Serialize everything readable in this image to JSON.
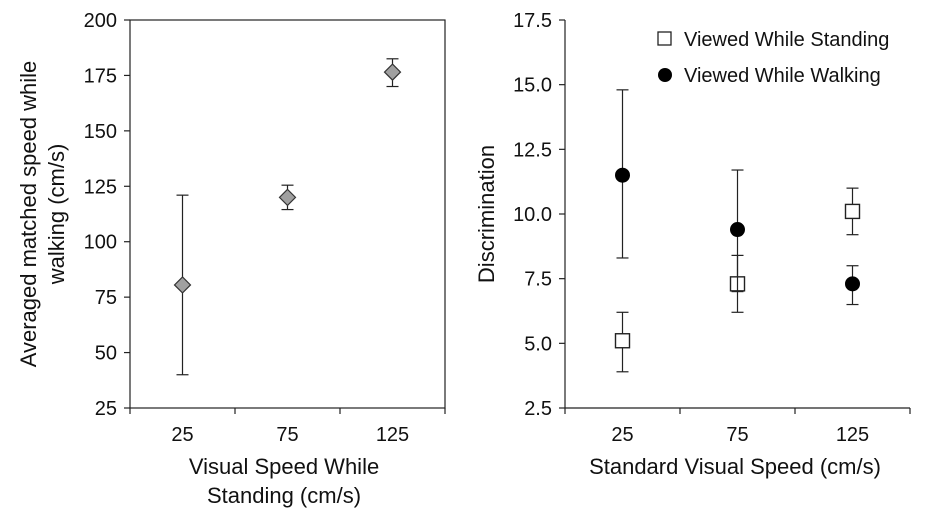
{
  "chart_data": [
    {
      "type": "scatter",
      "title": "",
      "xlabel_lines": [
        "Visual Speed While",
        "Standing (cm/s)"
      ],
      "ylabel_lines": [
        "Averaged matched speed while",
        "walking (cm/s)"
      ],
      "categories": [
        "25",
        "75",
        "125"
      ],
      "ylim": [
        25,
        200
      ],
      "yticks": [
        25,
        50,
        75,
        100,
        125,
        150,
        175,
        200
      ],
      "ytick_labels": [
        "25",
        "50",
        "75",
        "100",
        "125",
        "150",
        "175",
        "200"
      ],
      "grid": false,
      "border": true,
      "series": [
        {
          "marker": "diamond",
          "color": "#a0a0a0",
          "values": [
            80.5,
            120,
            176.5
          ],
          "err_low": [
            40,
            114.5,
            170
          ],
          "err_high": [
            121,
            125.5,
            182.5
          ]
        }
      ]
    },
    {
      "type": "scatter",
      "title": "",
      "xlabel": "Standard Visual Speed (cm/s)",
      "ylabel": "Discrimination",
      "categories": [
        "25",
        "75",
        "125"
      ],
      "ylim": [
        2.5,
        17.5
      ],
      "yticks": [
        2.5,
        5.0,
        7.5,
        10.0,
        12.5,
        15.0,
        17.5
      ],
      "ytick_labels": [
        "2.5",
        "5.0",
        "7.5",
        "10.0",
        "12.5",
        "15.0",
        "17.5"
      ],
      "grid": false,
      "border": false,
      "legend_position": "top-right",
      "series": [
        {
          "name": "Viewed While Standing",
          "marker": "square-open",
          "color": "#ffffff",
          "values": [
            5.1,
            7.3,
            10.1
          ],
          "err_low": [
            3.9,
            6.2,
            9.2
          ],
          "err_high": [
            6.2,
            8.4,
            11.0
          ]
        },
        {
          "name": "Viewed While Walking",
          "marker": "circle-filled",
          "color": "#000000",
          "values": [
            11.5,
            9.4,
            7.3
          ],
          "err_low": [
            8.3,
            7.0,
            6.5
          ],
          "err_high": [
            14.8,
            11.7,
            8.0
          ]
        }
      ]
    }
  ]
}
